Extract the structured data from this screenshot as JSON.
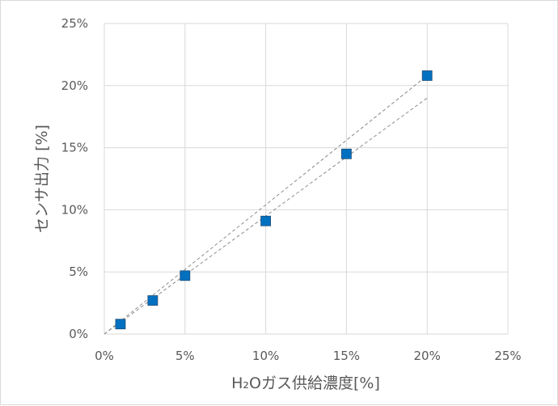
{
  "chart_data": {
    "type": "scatter",
    "title": "",
    "xlabel": "H₂Oガス供給濃度[%]",
    "ylabel": "センサ出力 [%]",
    "xlim": [
      0,
      25
    ],
    "ylim": [
      0,
      25
    ],
    "x_ticks": [
      "0%",
      "5%",
      "10%",
      "15%",
      "20%",
      "25%"
    ],
    "y_ticks": [
      "0%",
      "5%",
      "10%",
      "15%",
      "20%",
      "25%"
    ],
    "grid": true,
    "legend": "none",
    "marker_color": "#0070C0",
    "points": [
      {
        "x": 1,
        "y": 0.8
      },
      {
        "x": 3,
        "y": 2.7
      },
      {
        "x": 5,
        "y": 4.7
      },
      {
        "x": 10,
        "y": 9.1
      },
      {
        "x": 15,
        "y": 14.5
      },
      {
        "x": 20,
        "y": 20.8
      }
    ],
    "guide_lines": [
      {
        "from": [
          0,
          0
        ],
        "to": [
          20,
          20.8
        ]
      },
      {
        "from": [
          0,
          0
        ],
        "to": [
          20,
          19.0
        ]
      }
    ]
  }
}
